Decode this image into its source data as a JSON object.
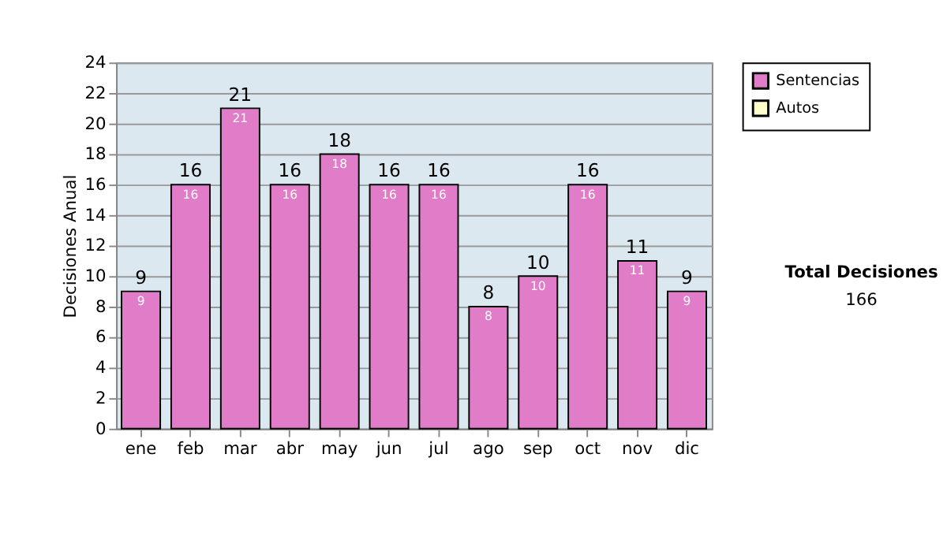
{
  "chart_data": {
    "type": "bar",
    "ylabel": "Decisiones Anual",
    "categories": [
      "ene",
      "feb",
      "mar",
      "abr",
      "may",
      "jun",
      "jul",
      "ago",
      "sep",
      "oct",
      "nov",
      "dic"
    ],
    "series": [
      {
        "name": "Sentencias",
        "color": "#e07cc8",
        "values": [
          9,
          16,
          21,
          16,
          18,
          16,
          16,
          8,
          10,
          16,
          11,
          9
        ],
        "value_labels": [
          "9",
          "16",
          "21",
          "16",
          "18",
          "16",
          "16",
          "8",
          "10",
          "16",
          "11",
          "9"
        ]
      },
      {
        "name": "Autos",
        "color": "#ffffcc",
        "values": [
          null,
          null,
          null,
          null,
          null,
          null,
          null,
          null,
          null,
          null,
          null,
          null
        ]
      }
    ],
    "totals": [
      "9",
      "16",
      "21",
      "16",
      "18",
      "16",
      "16",
      "8",
      "10",
      "16",
      "11",
      "9"
    ],
    "ylim": [
      0,
      24
    ],
    "yticks": [
      0,
      2,
      4,
      6,
      8,
      10,
      12,
      14,
      16,
      18,
      20,
      22,
      24
    ],
    "grid": "y",
    "legend": "right",
    "annotations": [
      "Total Decisiones",
      "166"
    ]
  }
}
